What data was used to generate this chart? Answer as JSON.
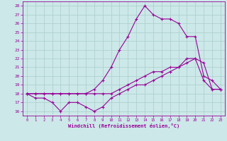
{
  "xlabel": "Windchill (Refroidissement éolien,°C)",
  "background_color": "#cce8e8",
  "line_color": "#990099",
  "grid_color": "#aacccc",
  "xlim": [
    -0.5,
    23.5
  ],
  "ylim": [
    15.5,
    28.5
  ],
  "yticks": [
    16,
    17,
    18,
    19,
    20,
    21,
    22,
    23,
    24,
    25,
    26,
    27,
    28
  ],
  "xticks": [
    0,
    1,
    2,
    3,
    4,
    5,
    6,
    7,
    8,
    9,
    10,
    11,
    12,
    13,
    14,
    15,
    16,
    17,
    18,
    19,
    20,
    21,
    22,
    23
  ],
  "line1_x": [
    0,
    1,
    2,
    3,
    4,
    5,
    6,
    7,
    8,
    9,
    10,
    11,
    12,
    13,
    14,
    15,
    16,
    17,
    18,
    19,
    20,
    21,
    22,
    23
  ],
  "line1_y": [
    18,
    17.5,
    17.5,
    17,
    16,
    17,
    17,
    16.5,
    16,
    16.5,
    17.5,
    18,
    18.5,
    19,
    19,
    19.5,
    20,
    20.5,
    21,
    22,
    22,
    19.5,
    18.5,
    18.5
  ],
  "line2_x": [
    0,
    1,
    2,
    3,
    4,
    5,
    6,
    7,
    8,
    9,
    10,
    11,
    12,
    13,
    14,
    15,
    16,
    17,
    18,
    19,
    20,
    21,
    22,
    23
  ],
  "line2_y": [
    18,
    18,
    18,
    18,
    18,
    18,
    18,
    18,
    18,
    18,
    18,
    18.5,
    19,
    19.5,
    20,
    20.5,
    20.5,
    21,
    21,
    21.5,
    22,
    21.5,
    18.5,
    18.5
  ],
  "line3_x": [
    0,
    1,
    2,
    3,
    4,
    5,
    6,
    7,
    8,
    9,
    10,
    11,
    12,
    13,
    14,
    15,
    16,
    17,
    18,
    19,
    20,
    21,
    22,
    23
  ],
  "line3_y": [
    18,
    18,
    18,
    18,
    18,
    18,
    18,
    18,
    18.5,
    19.5,
    21,
    23,
    24.5,
    26.5,
    28,
    27,
    26.5,
    26.5,
    26,
    24.5,
    24.5,
    20,
    19.5,
    18.5
  ]
}
